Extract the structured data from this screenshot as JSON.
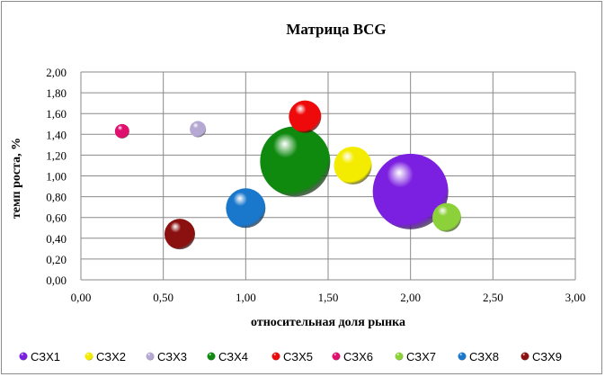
{
  "chart_data": {
    "type": "bubble",
    "title": "Матрица BCG",
    "xlabel": "относительная доля рынка",
    "ylabel": "темп роста, %",
    "xlim": [
      0,
      3
    ],
    "ylim": [
      0,
      2
    ],
    "x_ticks": [
      "0,00",
      "0,50",
      "1,00",
      "1,50",
      "2,00",
      "2,50",
      "3,00"
    ],
    "y_ticks": [
      "0,00",
      "0,20",
      "0,40",
      "0,60",
      "0,80",
      "1,00",
      "1,20",
      "1,40",
      "1,60",
      "1,80",
      "2,00"
    ],
    "grid": true,
    "legend_position": "bottom",
    "series": [
      {
        "name": "СЗХ1",
        "x": 2.0,
        "y": 0.85,
        "size": 42,
        "color": "#7b1fe0"
      },
      {
        "name": "СЗХ2",
        "x": 1.65,
        "y": 1.1,
        "size": 21,
        "color": "#f4ec00"
      },
      {
        "name": "СЗХ3",
        "x": 0.71,
        "y": 1.45,
        "size": 9,
        "color": "#b5a8d2"
      },
      {
        "name": "СЗХ4",
        "x": 1.3,
        "y": 1.14,
        "size": 39,
        "color": "#0f8a0f"
      },
      {
        "name": "СЗХ5",
        "x": 1.36,
        "y": 1.57,
        "size": 18,
        "color": "#ee0a0a"
      },
      {
        "name": "СЗХ6",
        "x": 0.25,
        "y": 1.43,
        "size": 8,
        "color": "#e0106e"
      },
      {
        "name": "СЗХ7",
        "x": 2.22,
        "y": 0.6,
        "size": 16,
        "color": "#8dd13a"
      },
      {
        "name": "СЗХ8",
        "x": 1.0,
        "y": 0.69,
        "size": 22,
        "color": "#1a78cc"
      },
      {
        "name": "СЗХ9",
        "x": 0.6,
        "y": 0.44,
        "size": 17,
        "color": "#8b1010"
      }
    ]
  }
}
